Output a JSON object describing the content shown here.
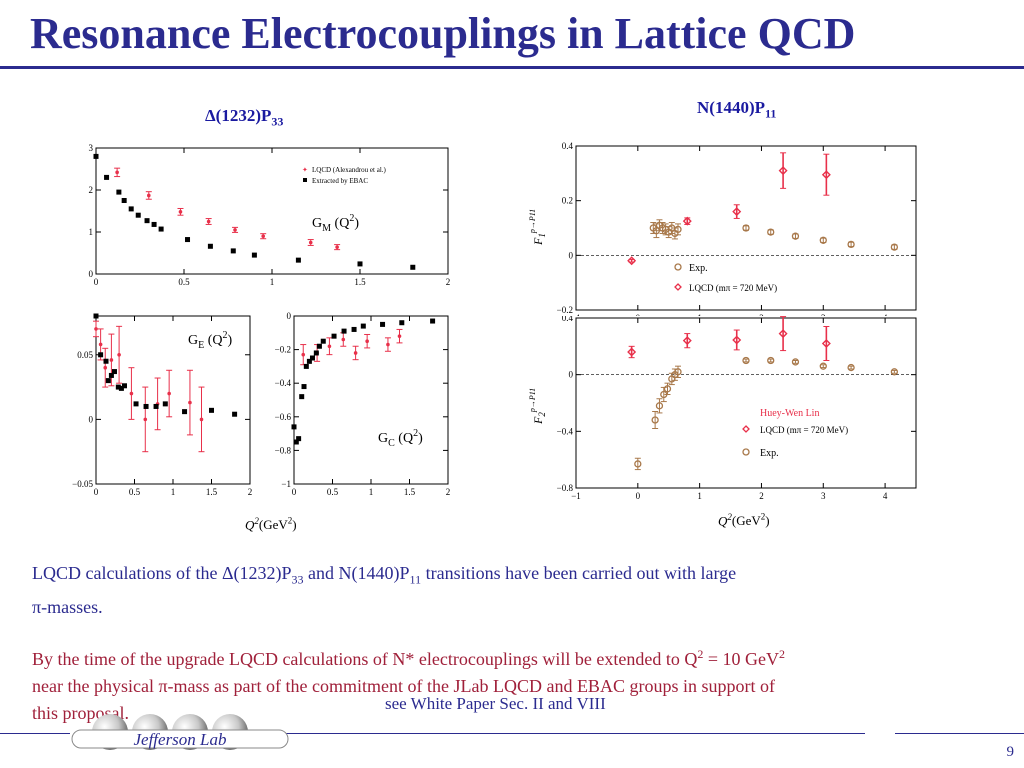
{
  "slide": {
    "title": "Resonance Electrocouplings in Lattice QCD",
    "page_number": "9",
    "heading_left": {
      "prefix": "Δ(1232)P",
      "sub": "33"
    },
    "heading_right": {
      "prefix": "N(1440)P",
      "sub": "11"
    },
    "para1": {
      "t1": "LQCD calculations of the Δ(1232)P",
      "s1": "33",
      "t2": " and N(1440)P",
      "s2": "11",
      "t3": " transitions have been carried out with large",
      "t4": "π-masses."
    },
    "para2": {
      "line1a": "By the time of the upgrade LQCD calculations of N* electrocouplings will be extended to Q",
      "sup1": "2",
      "line1b": " = 10 GeV",
      "sup2": "2",
      "line2": "near the physical π-mass as part of the commitment of the JLab LQCD and EBAC groups in support of",
      "line3": "this proposal."
    },
    "note": "see White Paper Sec. II and VIII",
    "logo_text": "Jefferson Lab",
    "colors": {
      "title": "#2b2b8f",
      "red_text": "#a0203a",
      "lqcd": "#e8304a",
      "exp": "#a8784a"
    }
  },
  "chart_data": [
    {
      "type": "scatter",
      "panel": "GM",
      "label": "G_M(Q^2)",
      "label_text": {
        "main": "G",
        "sub": "M",
        "open": " (Q",
        "sup": "2",
        "close": ")"
      },
      "xlim": [
        0,
        2
      ],
      "ylim": [
        0,
        3
      ],
      "xticks": [
        "0",
        "0.5",
        "1",
        "1.5",
        "2"
      ],
      "yticks": [
        "0",
        "1",
        "2",
        "3"
      ],
      "legend": [
        "LQCD (Alexandrou et al.)",
        "Extracted by EBAC"
      ],
      "series": [
        {
          "name": "LQCD (Alexandrou et al.)",
          "x": [
            0.12,
            0.3,
            0.48,
            0.64,
            0.79,
            0.95,
            1.22,
            1.37
          ],
          "y": [
            2.42,
            1.87,
            1.48,
            1.25,
            1.05,
            0.9,
            0.75,
            0.64
          ],
          "err": [
            0.1,
            0.09,
            0.08,
            0.07,
            0.06,
            0.06,
            0.07,
            0.06
          ]
        },
        {
          "name": "Extracted by EBAC",
          "x": [
            0.0,
            0.06,
            0.13,
            0.16,
            0.2,
            0.24,
            0.29,
            0.33,
            0.37,
            0.52,
            0.65,
            0.78,
            0.9,
            1.15,
            1.5,
            1.8
          ],
          "y": [
            2.8,
            2.3,
            1.95,
            1.75,
            1.55,
            1.4,
            1.27,
            1.18,
            1.07,
            0.82,
            0.66,
            0.55,
            0.45,
            0.33,
            0.24,
            0.16
          ]
        }
      ]
    },
    {
      "type": "scatter",
      "panel": "GE",
      "label": "G_E(Q^2)",
      "label_text": {
        "main": "G",
        "sub": "E",
        "open": " (Q",
        "sup": "2",
        "close": ")"
      },
      "xlim": [
        0,
        2
      ],
      "ylim": [
        -0.05,
        0.08
      ],
      "xticks": [
        "0",
        "0.5",
        "1",
        "1.5",
        "2"
      ],
      "yticks": [
        "-0.05",
        "0",
        "0.05"
      ],
      "series": [
        {
          "name": "",
          "x": [
            0.0,
            0.06,
            0.12,
            0.2,
            0.3,
            0.46,
            0.64,
            0.8,
            0.95,
            1.22,
            1.37
          ],
          "y": [
            0.07,
            0.058,
            0.04,
            0.046,
            0.05,
            0.02,
            0.0,
            0.012,
            0.02,
            0.013,
            0.0
          ],
          "err": [
            0.006,
            0.012,
            0.015,
            0.02,
            0.022,
            0.02,
            0.025,
            0.02,
            0.018,
            0.025,
            0.025
          ]
        },
        {
          "name": "",
          "x": [
            0.0,
            0.06,
            0.13,
            0.16,
            0.2,
            0.24,
            0.29,
            0.33,
            0.37,
            0.52,
            0.65,
            0.78,
            0.9,
            1.15,
            1.5,
            1.8
          ],
          "y": [
            0.08,
            0.05,
            0.045,
            0.03,
            0.034,
            0.037,
            0.025,
            0.024,
            0.026,
            0.012,
            0.01,
            0.01,
            0.012,
            0.006,
            0.007,
            0.004
          ]
        }
      ]
    },
    {
      "type": "scatter",
      "panel": "GC",
      "label": "G_C(Q^2)",
      "label_text": {
        "main": "G",
        "sub": "C",
        "open": " (Q",
        "sup": "2",
        "close": ")"
      },
      "xlim": [
        0,
        2
      ],
      "ylim": [
        -1,
        0
      ],
      "xticks": [
        "0",
        "0.5",
        "1",
        "1.5",
        "2"
      ],
      "yticks": [
        "0",
        "-0.2",
        "-0.4",
        "-0.6",
        "-0.8",
        "-1"
      ],
      "series": [
        {
          "name": "",
          "x": [
            0.12,
            0.3,
            0.46,
            0.64,
            0.8,
            0.95,
            1.22,
            1.37
          ],
          "y": [
            -0.23,
            -0.22,
            -0.18,
            -0.14,
            -0.22,
            -0.15,
            -0.17,
            -0.12
          ],
          "err": [
            0.06,
            0.05,
            0.05,
            0.04,
            0.04,
            0.04,
            0.04,
            0.04
          ]
        },
        {
          "name": "",
          "x": [
            0.0,
            0.03,
            0.06,
            0.1,
            0.13,
            0.16,
            0.2,
            0.24,
            0.29,
            0.33,
            0.38,
            0.52,
            0.65,
            0.78,
            0.9,
            1.15,
            1.4,
            1.8
          ],
          "y": [
            -0.66,
            -0.75,
            -0.73,
            -0.48,
            -0.42,
            -0.3,
            -0.27,
            -0.25,
            -0.22,
            -0.18,
            -0.15,
            -0.12,
            -0.09,
            -0.08,
            -0.06,
            -0.05,
            -0.04,
            -0.03
          ]
        }
      ]
    },
    {
      "type": "scatter",
      "panel": "F1",
      "ylabel": "F1 p→P11",
      "xlim": [
        -1,
        4.5
      ],
      "ylim": [
        -0.2,
        0.4
      ],
      "xticks": [
        "-1",
        "0",
        "1",
        "2",
        "3",
        "4"
      ],
      "yticks": [
        "0.4",
        "0.2",
        "0",
        "-0.2"
      ],
      "legend": [
        "Exp.",
        "LQCD (mπ = 720 MeV)"
      ],
      "series": [
        {
          "name": "LQCD (mπ = 720 MeV)",
          "x": [
            -0.1,
            0.8,
            1.6,
            2.35,
            3.05
          ],
          "y": [
            -0.02,
            0.125,
            0.16,
            0.31,
            0.295
          ],
          "err": [
            0.005,
            0.012,
            0.025,
            0.065,
            0.075
          ]
        },
        {
          "name": "Exp.",
          "x": [
            0.25,
            0.3,
            0.35,
            0.4,
            0.45,
            0.5,
            0.55,
            0.6,
            0.65,
            1.75,
            2.15,
            2.55,
            3.0,
            3.45,
            4.15
          ],
          "y": [
            0.1,
            0.09,
            0.11,
            0.1,
            0.095,
            0.085,
            0.1,
            0.08,
            0.095,
            0.1,
            0.085,
            0.07,
            0.055,
            0.04,
            0.03
          ],
          "err": [
            0.02,
            0.025,
            0.02,
            0.02,
            0.02,
            0.02,
            0.02,
            0.02,
            0.02,
            0.008,
            0.008,
            0.008,
            0.008,
            0.008,
            0.008
          ]
        }
      ]
    },
    {
      "type": "scatter",
      "panel": "F2",
      "ylabel": "F2 p→P11",
      "xlabel": "Q2(GeV2)",
      "xlim": [
        -1,
        4.5
      ],
      "ylim": [
        -0.8,
        0.4
      ],
      "xticks": [
        "-1",
        "0",
        "1",
        "2",
        "3",
        "4"
      ],
      "yticks": [
        "0.4",
        "0",
        "-0.4",
        "-0.8"
      ],
      "legend": [
        "Huey-Wen Lin",
        "LQCD (mπ = 720 MeV)",
        "Exp."
      ],
      "series": [
        {
          "name": "LQCD (mπ = 720 MeV)",
          "x": [
            -0.1,
            0.8,
            1.6,
            2.35,
            3.05
          ],
          "y": [
            0.16,
            0.24,
            0.245,
            0.29,
            0.22
          ],
          "err": [
            0.04,
            0.05,
            0.07,
            0.12,
            0.12
          ]
        },
        {
          "name": "Exp.",
          "x": [
            0.0,
            0.28,
            0.35,
            0.42,
            0.48,
            0.55,
            0.6,
            0.65,
            1.75,
            2.15,
            2.55,
            3.0,
            3.45,
            4.15
          ],
          "y": [
            -0.63,
            -0.32,
            -0.22,
            -0.14,
            -0.1,
            -0.03,
            0.0,
            0.02,
            0.1,
            0.1,
            0.09,
            0.06,
            0.05,
            0.02
          ],
          "err": [
            0.04,
            0.06,
            0.05,
            0.05,
            0.04,
            0.04,
            0.04,
            0.04,
            0.01,
            0.01,
            0.01,
            0.01,
            0.01,
            0.01
          ]
        }
      ]
    }
  ]
}
